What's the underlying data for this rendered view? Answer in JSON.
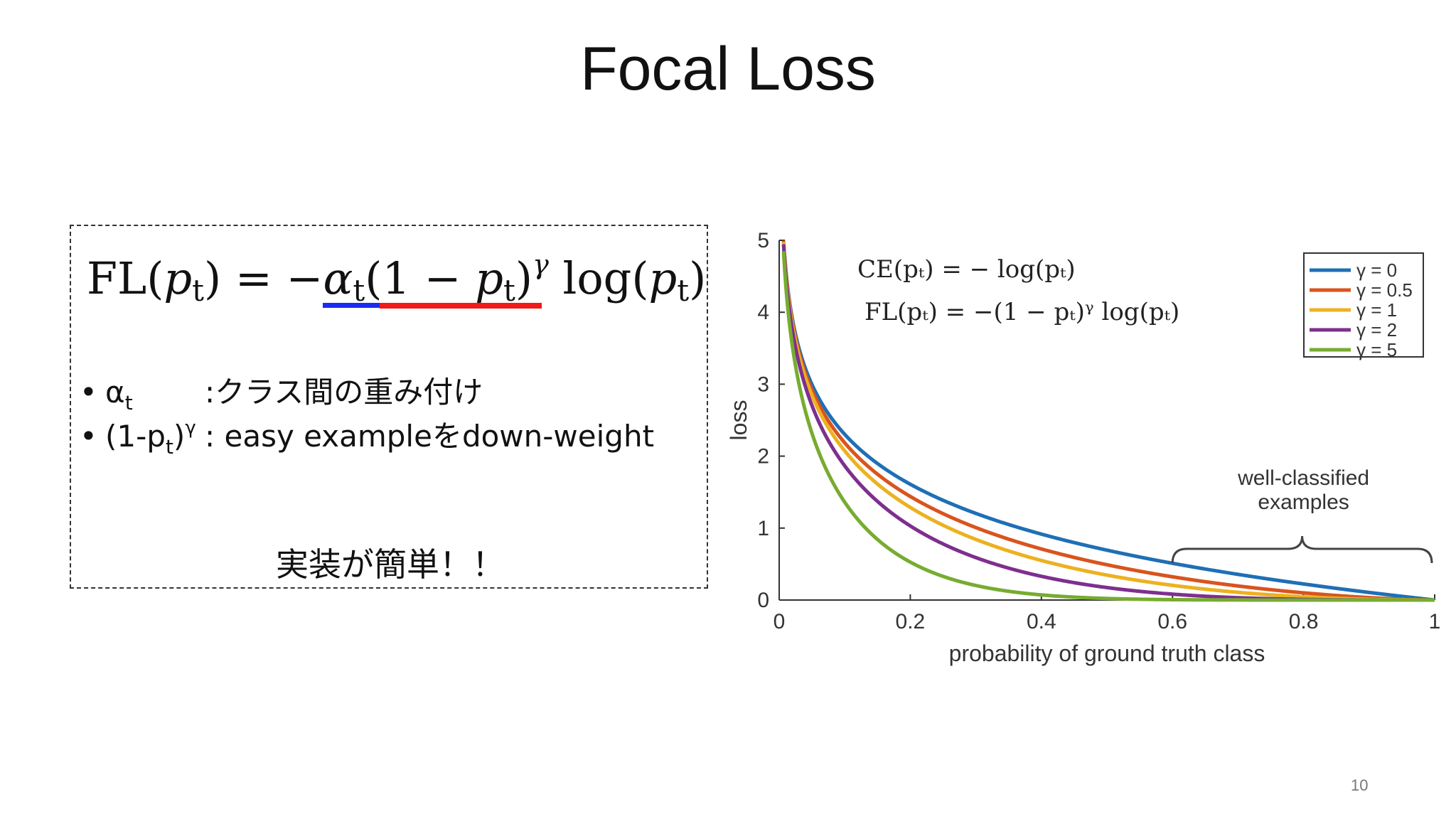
{
  "slide": {
    "title": "Focal Loss",
    "page_number": "10"
  },
  "formula_box": {
    "main_formula": {
      "lhs": "FL(",
      "p": "p",
      "t": "t",
      "eq": ") = −",
      "alpha": "α",
      "mid": "(1 − ",
      "gamma": "γ",
      "log": " log(",
      "close": ")"
    },
    "bullets": [
      {
        "symbol": "α",
        "sub": "t",
        "text": ":クラス間の重み付け"
      },
      {
        "symbol_pre": "(1-p",
        "sub": "t",
        "symbol_post": ")",
        "sup": "γ",
        "text": ":  easy exampleをdown-weight"
      }
    ],
    "bullet_marker": "•",
    "note": "実装が簡単！！",
    "underline_colors": {
      "alpha": "#1a2cf0",
      "modulating": "#f01a1a"
    }
  },
  "chart_data": {
    "type": "line",
    "xlabel": "probability of ground truth class",
    "ylabel": "loss",
    "xlim": [
      0,
      1
    ],
    "ylim": [
      0,
      5
    ],
    "x_ticks": [
      "0",
      "0.2",
      "0.4",
      "0.6",
      "0.8",
      "1"
    ],
    "y_ticks": [
      "0",
      "1",
      "2",
      "3",
      "4",
      "5"
    ],
    "grid": false,
    "legend_position": "top-right",
    "series": [
      {
        "name": "γ = 0",
        "gamma": 0,
        "color": "#1f6fb5"
      },
      {
        "name": "γ = 0.5",
        "gamma": 0.5,
        "color": "#d9541e"
      },
      {
        "name": "γ = 1",
        "gamma": 1,
        "color": "#edb120"
      },
      {
        "name": "γ = 2",
        "gamma": 2,
        "color": "#7e2f8e"
      },
      {
        "name": "γ = 5",
        "gamma": 5,
        "color": "#77ac30"
      }
    ],
    "annotations": {
      "ce_formula": "CE(pₜ) = − log(pₜ)",
      "fl_formula": "FL(pₜ) = −(1 − pₜ)ᵞ log(pₜ)",
      "bracket_label_line1": "well-classified",
      "bracket_label_line2": "examples",
      "bracket_range": [
        0.6,
        1.0
      ]
    }
  }
}
